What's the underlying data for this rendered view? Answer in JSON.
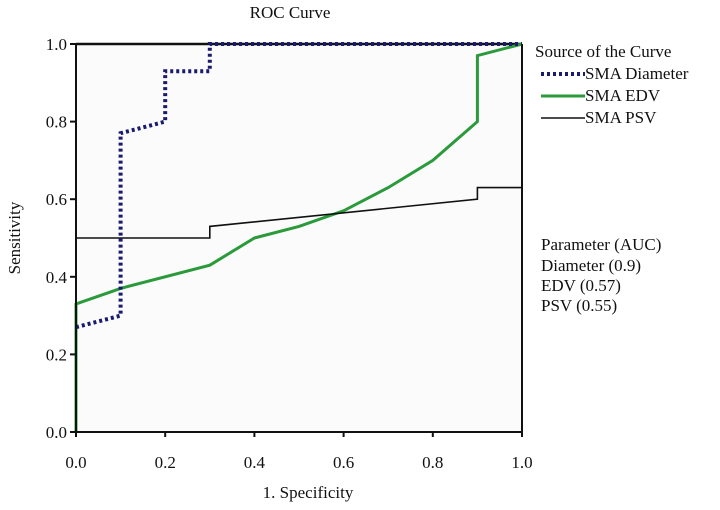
{
  "chart_data": {
    "type": "line",
    "title": "ROC Curve",
    "xlabel": "1. Specificity",
    "ylabel": "Sensitivity",
    "xlim": [
      0,
      1
    ],
    "ylim": [
      0,
      1
    ],
    "xticks": [
      "0.0",
      "0.2",
      "0.4",
      "0.6",
      "0.8",
      "1.0"
    ],
    "yticks": [
      "0.0",
      "0.2",
      "0.4",
      "0.6",
      "0.8",
      "1.0"
    ],
    "grid": false,
    "legend_title": "Source of the Curve",
    "legend_position": "right",
    "series": [
      {
        "name": "SMA Diameter",
        "color": "#1a1a6e",
        "style": "dotted",
        "x": [
          0.0,
          0.1,
          0.1,
          0.2,
          0.2,
          0.3,
          0.3,
          1.0
        ],
        "y": [
          0.27,
          0.3,
          0.77,
          0.8,
          0.93,
          0.93,
          1.0,
          1.0
        ]
      },
      {
        "name": "SMA EDV",
        "color": "#2a9a3a",
        "style": "solid",
        "x": [
          0.0,
          0.0,
          0.1,
          0.3,
          0.4,
          0.5,
          0.6,
          0.7,
          0.8,
          0.9,
          0.9,
          1.0
        ],
        "y": [
          0.0,
          0.33,
          0.37,
          0.43,
          0.5,
          0.53,
          0.57,
          0.63,
          0.7,
          0.8,
          0.97,
          1.0
        ]
      },
      {
        "name": "SMA PSV",
        "color": "#111111",
        "style": "solid",
        "x": [
          0.0,
          0.3,
          0.3,
          0.9,
          0.9,
          1.0
        ],
        "y": [
          0.5,
          0.5,
          0.53,
          0.6,
          0.63,
          0.63
        ]
      }
    ],
    "reference_line": {
      "x": [
        0,
        1
      ],
      "y": [
        1,
        1
      ]
    },
    "annotation": {
      "header": "Parameter (AUC)",
      "lines": [
        "Diameter (0.9)",
        "EDV (0.57)",
        "PSV (0.55)"
      ]
    }
  }
}
